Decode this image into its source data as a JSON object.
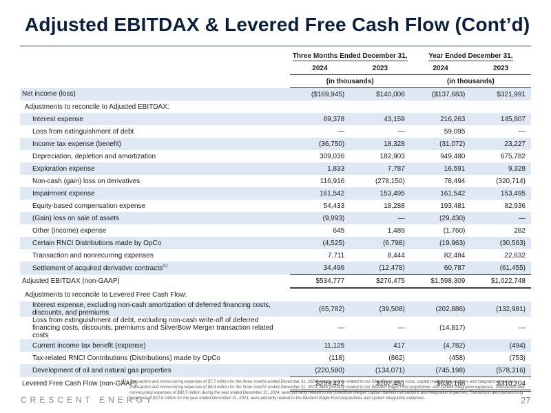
{
  "title": "Adjusted EBITDAX & Levered Free Cash Flow (Cont’d)",
  "header": {
    "period1": "Three Months Ended December 31,",
    "period2": "Year Ended December 31,",
    "years": [
      "2024",
      "2023",
      "2024",
      "2023"
    ],
    "units1": "(in thousands)",
    "units2": "(in thousands)"
  },
  "rows": [
    {
      "label": "Net income (loss)",
      "v": [
        "($169,945)",
        "$140,008",
        "($137,683)",
        "$321,991"
      ]
    },
    {
      "label": "Adjustments to reconcile to Adjusted EBITDAX:",
      "v": [
        "",
        "",
        "",
        ""
      ]
    },
    {
      "label": "Interest expense",
      "v": [
        "69,378",
        "43,159",
        "216,263",
        "145,807"
      ]
    },
    {
      "label": "Loss from extinguishment of debt",
      "v": [
        "—",
        "—",
        "59,095",
        "—"
      ]
    },
    {
      "label": "Income tax expense (benefit)",
      "v": [
        "(36,750)",
        "18,328",
        "(31,072)",
        "23,227"
      ]
    },
    {
      "label": "Depreciation, depletion and amortization",
      "v": [
        "309,036",
        "182,903",
        "949,480",
        "675,782"
      ]
    },
    {
      "label": "Exploration expense",
      "v": [
        "1,833",
        "7,787",
        "16,591",
        "9,328"
      ]
    },
    {
      "label": "Non-cash (gain) loss on derivatives",
      "v": [
        "116,916",
        "(278,150)",
        "78,494",
        "(320,714)"
      ]
    },
    {
      "label": "Impairment expense",
      "v": [
        "161,542",
        "153,495",
        "161,542",
        "153,495"
      ]
    },
    {
      "label": "Equity-based compensation expense",
      "v": [
        "54,433",
        "18,288",
        "193,481",
        "82,936"
      ]
    },
    {
      "label": "(Gain) loss on sale of assets",
      "v": [
        "(9,993)",
        "—",
        "(29,430)",
        "—"
      ]
    },
    {
      "label": "Other (income) expense",
      "v": [
        "645",
        "1,489",
        "(1,760)",
        "282"
      ]
    },
    {
      "label": "Certain RNCI Distributions made by OpCo",
      "v": [
        "(4,525)",
        "(6,798)",
        "(19,963)",
        "(30,563)"
      ]
    },
    {
      "label": "Transaction and nonrecurring expenses",
      "v": [
        "7,711",
        "8,444",
        "82,484",
        "22,632"
      ]
    },
    {
      "label": "Settlement of acquired derivative contracts",
      "sup": "(1)",
      "v": [
        "34,496",
        "(12,478)",
        "60,787",
        "(61,455)"
      ]
    },
    {
      "label": "Adjusted EBITDAX (non-GAAP)",
      "v": [
        "$534,777",
        "$276,475",
        "$1,598,309",
        "$1,022,748"
      ]
    },
    {
      "label": "Adjustments to reconcile to Levered Free Cash Flow:",
      "v": [
        "",
        "",
        "",
        ""
      ]
    },
    {
      "label": "Interest expense, excluding non-cash amortization of deferred financing costs, discounts, and premiums",
      "v": [
        "(65,782)",
        "(39,508)",
        "(202,886)",
        "(132,981)"
      ]
    },
    {
      "label": "Loss from extinguishment of debt, excluding non-cash write-off of deferred financing costs, discounts, premiums and SilverBow Merger transaction related costs",
      "v": [
        "—",
        "—",
        "(14,817)",
        "—"
      ]
    },
    {
      "label": "Current income tax benefit (expense)",
      "v": [
        "11,125",
        "417",
        "(4,782)",
        "(494)"
      ]
    },
    {
      "label": "Tax-related RNCI Contributions (Distributions) made by OpCo",
      "v": [
        "(118)",
        "(862)",
        "(458)",
        "(753)"
      ]
    },
    {
      "label": "Development of oil and natural gas properties",
      "v": [
        "(220,580)",
        "(134,071)",
        "(745,198)",
        "(578,316)"
      ]
    },
    {
      "label": "Levered Free Cash Flow (non-GAAP)",
      "v": [
        "$259,422",
        "$102,451",
        "$630,168",
        "$310,204"
      ]
    }
  ],
  "footnote_marker": "(1)",
  "footnote": "Transaction and nonrecurring expenses of $7.7 million for the three months ended December 31, 2024, were primarily related to our SilverBow merger costs, capital markets transactions and integration expenses. Transaction and nonrecurring expenses of $8.4 million for the three months ended December 31, 2023, were primarily related to our Western Eagle Ford Acquisitions and system integration expenses. Transaction and nonrecurring expenses of $82.5 million during the year ended December 31, 2024, were primarily related to the SilverBow Merger, capital markets transactions and integration expenses. Transaction and nonrecurring expenses of $22.6 million for the year ended December 31, 2023, were primarily related to the Western Eagle Ford Acquisitions and system integration expenses.",
  "brand": "CRESCENT ENERGY",
  "page_number": "27"
}
